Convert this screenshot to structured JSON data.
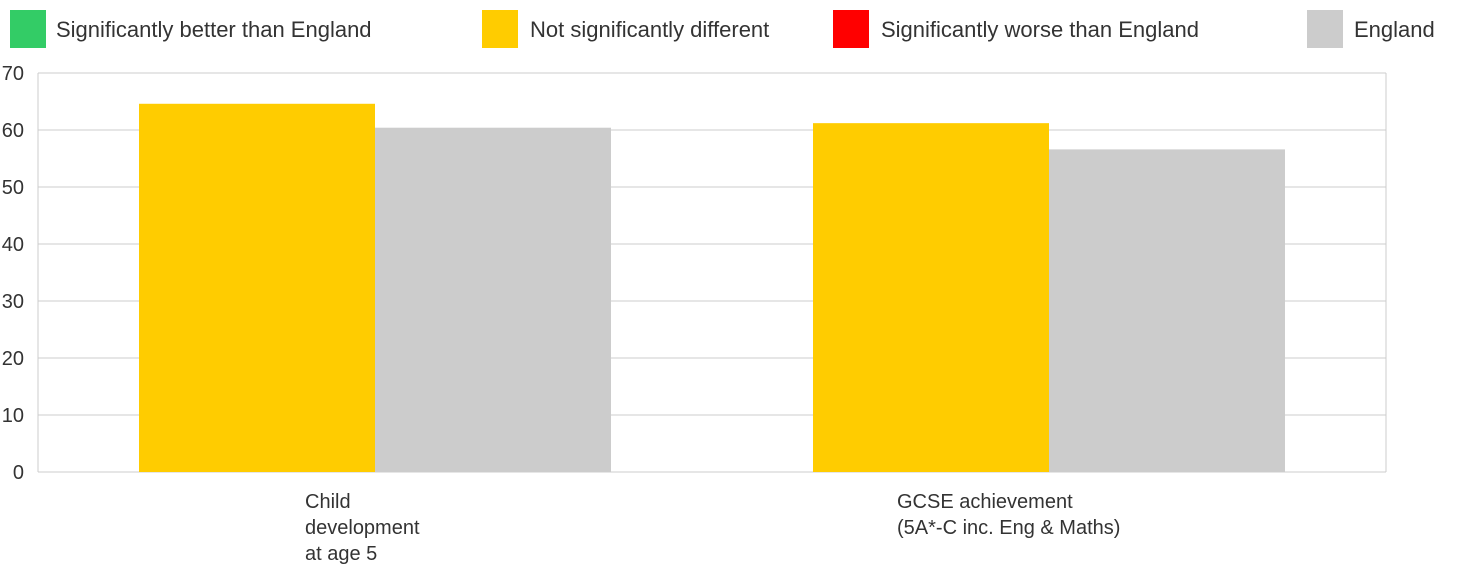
{
  "chart_data": {
    "type": "bar",
    "categories": [
      [
        "Child",
        "development",
        "at age 5"
      ],
      [
        "GCSE achievement",
        "(5A*-C inc. Eng & Maths)"
      ]
    ],
    "series": [
      {
        "values": [
          64.6,
          61.2
        ],
        "color": "#ffcc00"
      },
      {
        "name": "England",
        "values": [
          60.4,
          56.6
        ],
        "color": "#cccccc"
      }
    ],
    "legend": [
      {
        "label": "Significantly better than England",
        "color": "#33cc66"
      },
      {
        "label": "Not significantly different",
        "color": "#ffcc00"
      },
      {
        "label": "Significantly worse than England",
        "color": "#ff0000"
      },
      {
        "label": "England",
        "color": "#cccccc"
      }
    ],
    "legend_position": "top",
    "ylim": [
      0,
      70
    ],
    "yticks": [
      0,
      10,
      20,
      30,
      40,
      50,
      60,
      70
    ],
    "grid": true
  }
}
